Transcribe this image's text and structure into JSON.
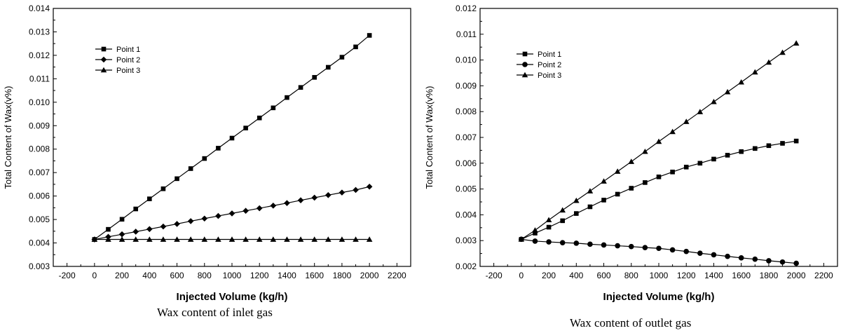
{
  "charts": [
    {
      "type": "line",
      "caption": "Wax content of inlet gas",
      "xlabel": "Injected Volume (kg/h)",
      "ylabel": "Total Content of Wax(v%)",
      "xlim": [
        -300,
        2300
      ],
      "ylim": [
        0.003,
        0.014
      ],
      "xticks": [
        -200,
        0,
        200,
        400,
        600,
        800,
        1000,
        1200,
        1400,
        1600,
        1800,
        2000,
        2200
      ],
      "xtick_labels": [
        "-200",
        "0",
        "200",
        "400",
        "600",
        "800",
        "1000",
        "1200",
        "1400",
        "1600",
        "1800",
        "2000",
        "2200"
      ],
      "yticks": [
        0.003,
        0.004,
        0.005,
        0.006,
        0.007,
        0.008,
        0.009,
        0.01,
        0.011,
        0.012,
        0.013,
        0.014
      ],
      "ytick_labels": [
        "0.003",
        "0.004",
        "0.005",
        "0.006",
        "0.007",
        "0.008",
        "0.009",
        "0.010",
        "0.011",
        "0.012",
        "0.013",
        "0.014"
      ],
      "legend_position": "top-left",
      "x": [
        0,
        100,
        200,
        300,
        400,
        500,
        600,
        700,
        800,
        900,
        1000,
        1100,
        1200,
        1300,
        1400,
        1500,
        1600,
        1700,
        1800,
        1900,
        2000
      ],
      "series": [
        {
          "name": "Point 1",
          "marker": "square",
          "values": [
            0.00415,
            0.00458,
            0.00501,
            0.00545,
            0.00588,
            0.00631,
            0.00674,
            0.00717,
            0.0076,
            0.00804,
            0.00847,
            0.0089,
            0.00933,
            0.00976,
            0.0102,
            0.01063,
            0.01106,
            0.01149,
            0.01192,
            0.01236,
            0.01285
          ]
        },
        {
          "name": "Point 2",
          "marker": "diamond",
          "values": [
            0.00415,
            0.00426,
            0.00437,
            0.00448,
            0.00459,
            0.0047,
            0.00481,
            0.00493,
            0.00504,
            0.00515,
            0.00526,
            0.00537,
            0.00548,
            0.00559,
            0.0057,
            0.00582,
            0.00593,
            0.00604,
            0.00615,
            0.00626,
            0.0064
          ]
        },
        {
          "name": "Point 3",
          "marker": "triangle",
          "values": [
            0.00415,
            0.00415,
            0.00415,
            0.00415,
            0.00415,
            0.00415,
            0.00415,
            0.00415,
            0.00415,
            0.00415,
            0.00415,
            0.00415,
            0.00415,
            0.00415,
            0.00415,
            0.00415,
            0.00415,
            0.00415,
            0.00415,
            0.00415,
            0.00415
          ]
        }
      ]
    },
    {
      "type": "line",
      "caption": "Wax content of outlet gas",
      "xlabel": "Injected Volume (kg/h)",
      "ylabel": "Total Content of Wax(v%)",
      "xlim": [
        -300,
        2300
      ],
      "ylim": [
        0.002,
        0.012
      ],
      "xticks": [
        -200,
        0,
        200,
        400,
        600,
        800,
        1000,
        1200,
        1400,
        1600,
        1800,
        2000,
        2200
      ],
      "xtick_labels": [
        "-200",
        "0",
        "200",
        "400",
        "600",
        "800",
        "1000",
        "1200",
        "1400",
        "1600",
        "1800",
        "2000",
        "2200"
      ],
      "yticks": [
        0.002,
        0.003,
        0.004,
        0.005,
        0.006,
        0.007,
        0.008,
        0.009,
        0.01,
        0.011,
        0.012
      ],
      "ytick_labels": [
        "0.002",
        "0.003",
        "0.004",
        "0.005",
        "0.006",
        "0.007",
        "0.008",
        "0.009",
        "0.010",
        "0.011",
        "0.012"
      ],
      "legend_position": "top-left",
      "x": [
        0,
        100,
        200,
        300,
        400,
        500,
        600,
        700,
        800,
        900,
        1000,
        1100,
        1200,
        1300,
        1400,
        1500,
        1600,
        1700,
        1800,
        1900,
        2000
      ],
      "series": [
        {
          "name": "Point 1",
          "marker": "square",
          "values": [
            0.00305,
            0.00329,
            0.00352,
            0.00377,
            0.00405,
            0.00431,
            0.00457,
            0.0048,
            0.00503,
            0.00525,
            0.00547,
            0.00566,
            0.00585,
            0.006,
            0.00616,
            0.00631,
            0.00645,
            0.00657,
            0.00668,
            0.00677,
            0.00686
          ]
        },
        {
          "name": "Point 2",
          "marker": "circle",
          "values": [
            0.00305,
            0.00298,
            0.00295,
            0.00292,
            0.0029,
            0.00286,
            0.00283,
            0.0028,
            0.00277,
            0.00273,
            0.0027,
            0.00264,
            0.00258,
            0.00251,
            0.00245,
            0.00239,
            0.00233,
            0.00228,
            0.00222,
            0.00217,
            0.00212
          ]
        },
        {
          "name": "Point 3",
          "marker": "triangle",
          "values": [
            0.00305,
            0.0034,
            0.0038,
            0.00418,
            0.00455,
            0.00492,
            0.0053,
            0.00568,
            0.00606,
            0.00645,
            0.00684,
            0.00722,
            0.00761,
            0.00799,
            0.00838,
            0.00876,
            0.00914,
            0.00953,
            0.00991,
            0.01029,
            0.01065
          ]
        }
      ]
    }
  ]
}
